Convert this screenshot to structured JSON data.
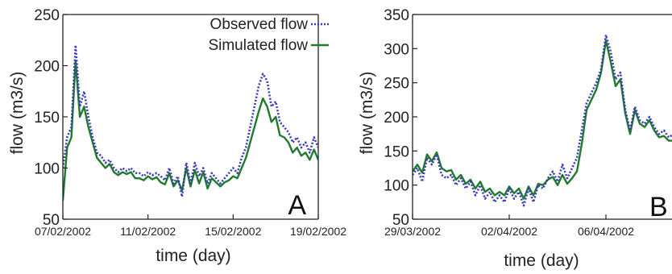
{
  "colors": {
    "observed": "#3a3ab8",
    "simulated": "#1f7a2e",
    "axis": "#222222"
  },
  "chart_data": [
    {
      "type": "line",
      "panel_label": "A",
      "xlabel": "time (day)",
      "ylabel": "flow (m3/s)",
      "xlim": [
        0,
        12
      ],
      "ylim": [
        50,
        250
      ],
      "x_ticks": [
        0,
        4,
        8,
        12
      ],
      "x_tick_labels": [
        "07/02/2002",
        "11/02/2002",
        "15/02/2002",
        "19/02/2002"
      ],
      "y_ticks": [
        50,
        100,
        150,
        200,
        250
      ],
      "y_tick_labels": [
        "50",
        "100",
        "150",
        "200",
        "250"
      ],
      "legend": {
        "position": "top-right",
        "entries": [
          "Observed flow",
          "Simulated flow"
        ]
      },
      "series": [
        {
          "name": "Observed flow",
          "style": "dotted",
          "color": "#3a3ab8",
          "x": [
            0,
            0.2,
            0.4,
            0.6,
            0.8,
            1.0,
            1.2,
            1.4,
            1.6,
            1.8,
            2.0,
            2.2,
            2.4,
            2.6,
            2.8,
            3.0,
            3.2,
            3.4,
            3.6,
            3.8,
            4.0,
            4.2,
            4.4,
            4.6,
            4.8,
            5.0,
            5.2,
            5.4,
            5.6,
            5.8,
            6.0,
            6.2,
            6.4,
            6.6,
            6.8,
            7.0,
            7.2,
            7.4,
            7.6,
            7.8,
            8.0,
            8.2,
            8.4,
            8.6,
            8.8,
            9.0,
            9.2,
            9.4,
            9.6,
            9.8,
            10.0,
            10.2,
            10.4,
            10.6,
            10.8,
            11.0,
            11.2,
            11.4,
            11.6,
            11.8,
            12.0
          ],
          "values": [
            100,
            130,
            140,
            220,
            160,
            175,
            150,
            130,
            115,
            112,
            105,
            108,
            100,
            96,
            100,
            97,
            100,
            95,
            95,
            92,
            96,
            93,
            95,
            92,
            88,
            100,
            85,
            92,
            72,
            105,
            85,
            105,
            92,
            100,
            85,
            95,
            90,
            85,
            90,
            95,
            100,
            95,
            110,
            120,
            140,
            160,
            180,
            192,
            185,
            160,
            165,
            145,
            140,
            135,
            125,
            130,
            120,
            125,
            115,
            130,
            120
          ]
        },
        {
          "name": "Simulated flow",
          "style": "solid",
          "color": "#1f7a2e",
          "x": [
            0,
            0.2,
            0.4,
            0.6,
            0.8,
            1.0,
            1.2,
            1.4,
            1.6,
            1.8,
            2.0,
            2.2,
            2.4,
            2.6,
            2.8,
            3.0,
            3.2,
            3.4,
            3.6,
            3.8,
            4.0,
            4.2,
            4.4,
            4.6,
            4.8,
            5.0,
            5.2,
            5.4,
            5.6,
            5.8,
            6.0,
            6.2,
            6.4,
            6.6,
            6.8,
            7.0,
            7.2,
            7.4,
            7.6,
            7.8,
            8.0,
            8.2,
            8.4,
            8.6,
            8.8,
            9.0,
            9.2,
            9.4,
            9.6,
            9.8,
            10.0,
            10.2,
            10.4,
            10.6,
            10.8,
            11.0,
            11.2,
            11.4,
            11.6,
            11.8,
            12.0
          ],
          "values": [
            68,
            120,
            130,
            205,
            150,
            160,
            140,
            125,
            110,
            105,
            100,
            104,
            96,
            93,
            96,
            94,
            96,
            90,
            90,
            88,
            92,
            89,
            91,
            86,
            84,
            95,
            82,
            88,
            78,
            100,
            82,
            98,
            85,
            96,
            80,
            90,
            86,
            82,
            86,
            88,
            92,
            90,
            100,
            110,
            125,
            140,
            155,
            168,
            160,
            145,
            150,
            132,
            130,
            125,
            115,
            120,
            112,
            115,
            108,
            118,
            108
          ]
        }
      ]
    },
    {
      "type": "line",
      "panel_label": "B",
      "xlabel": "time (day)",
      "ylabel": "flow (m3/s)",
      "xlim": [
        0,
        11.3
      ],
      "ylim": [
        50,
        350
      ],
      "x_ticks": [
        0,
        4,
        8
      ],
      "x_tick_labels": [
        "29/03/2002",
        "02/04/2002",
        "06/04/2002"
      ],
      "y_ticks": [
        50,
        100,
        150,
        200,
        250,
        300,
        350
      ],
      "y_tick_labels": [
        "50",
        "100",
        "150",
        "200",
        "250",
        "300",
        "350"
      ],
      "series": [
        {
          "name": "Observed flow",
          "style": "dotted",
          "color": "#3a3ab8",
          "x": [
            0,
            0.2,
            0.4,
            0.6,
            0.8,
            1.0,
            1.2,
            1.4,
            1.6,
            1.8,
            2.0,
            2.2,
            2.4,
            2.6,
            2.8,
            3.0,
            3.2,
            3.4,
            3.6,
            3.8,
            4.0,
            4.2,
            4.4,
            4.6,
            4.8,
            5.0,
            5.2,
            5.4,
            5.6,
            5.8,
            6.0,
            6.2,
            6.4,
            6.6,
            6.8,
            7.0,
            7.2,
            7.4,
            7.6,
            7.8,
            8.0,
            8.2,
            8.4,
            8.6,
            8.8,
            9.0,
            9.2,
            9.4,
            9.6,
            9.8,
            10.0,
            10.2,
            10.4,
            10.6,
            10.8,
            11.0,
            11.3
          ],
          "values": [
            115,
            125,
            105,
            140,
            130,
            145,
            115,
            110,
            115,
            100,
            110,
            95,
            105,
            85,
            100,
            80,
            90,
            75,
            85,
            75,
            95,
            80,
            90,
            70,
            95,
            75,
            100,
            95,
            110,
            120,
            105,
            130,
            110,
            125,
            140,
            180,
            220,
            235,
            250,
            270,
            320,
            295,
            255,
            265,
            210,
            180,
            215,
            195,
            190,
            200,
            185,
            175,
            180,
            170,
            175,
            178,
            178
          ]
        },
        {
          "name": "Simulated flow",
          "style": "solid",
          "color": "#1f7a2e",
          "x": [
            0,
            0.2,
            0.4,
            0.6,
            0.8,
            1.0,
            1.2,
            1.4,
            1.6,
            1.8,
            2.0,
            2.2,
            2.4,
            2.6,
            2.8,
            3.0,
            3.2,
            3.4,
            3.6,
            3.8,
            4.0,
            4.2,
            4.4,
            4.6,
            4.8,
            5.0,
            5.2,
            5.4,
            5.6,
            5.8,
            6.0,
            6.2,
            6.4,
            6.6,
            6.8,
            7.0,
            7.2,
            7.4,
            7.6,
            7.8,
            8.0,
            8.2,
            8.4,
            8.6,
            8.8,
            9.0,
            9.2,
            9.4,
            9.6,
            9.8,
            10.0,
            10.2,
            10.4,
            10.6,
            10.8,
            11.0,
            11.3
          ],
          "values": [
            120,
            130,
            118,
            145,
            135,
            148,
            125,
            120,
            122,
            108,
            115,
            102,
            108,
            95,
            105,
            90,
            95,
            85,
            90,
            85,
            98,
            88,
            95,
            80,
            98,
            85,
            102,
            100,
            108,
            112,
            100,
            115,
            102,
            110,
            120,
            160,
            210,
            225,
            240,
            265,
            312,
            280,
            245,
            255,
            205,
            175,
            210,
            190,
            185,
            195,
            180,
            170,
            172,
            165,
            165,
            166,
            166
          ]
        }
      ]
    }
  ]
}
